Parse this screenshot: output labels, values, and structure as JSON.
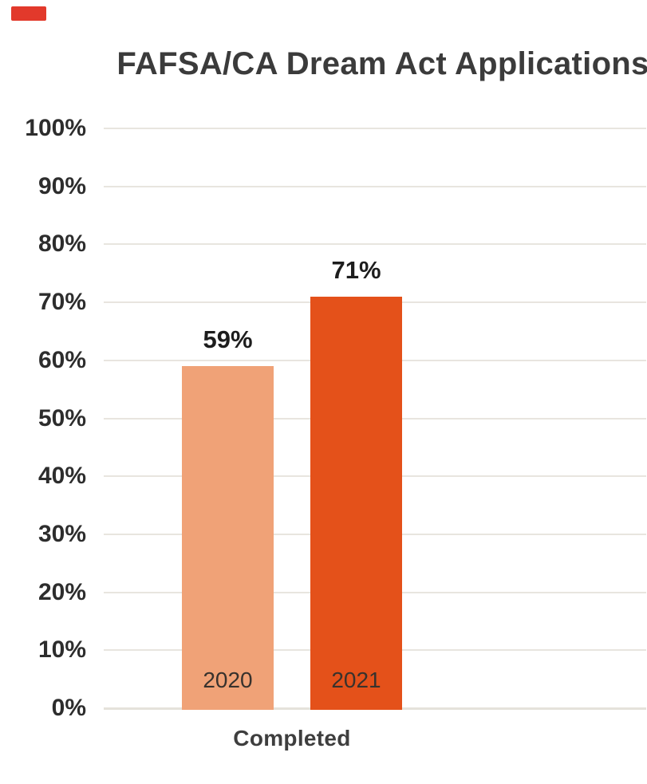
{
  "chart_data": {
    "type": "bar",
    "title": "FAFSA/CA Dream Act Applications",
    "categories": [
      "Completed"
    ],
    "series": [
      {
        "name": "2020",
        "values": [
          59
        ],
        "color": "#F0A277"
      },
      {
        "name": "2021",
        "values": [
          71
        ],
        "color": "#E4511A"
      }
    ],
    "value_labels": [
      "59%",
      "71%"
    ],
    "xlabel": "",
    "ylabel": "",
    "ylim": [
      0,
      100
    ],
    "ytick_step": 10,
    "ytick_labels": [
      "0%",
      "10%",
      "20%",
      "30%",
      "40%",
      "50%",
      "60%",
      "70%",
      "80%",
      "90%",
      "100%"
    ],
    "grid": "horizontal-lines",
    "legend": "none",
    "value_label_position": "above-bar",
    "series_name_label_position": "inside-bar-bottom"
  },
  "colors": {
    "bar_2020": "#F0A277",
    "bar_2021": "#E4511A",
    "gridline": "#E8E5DF",
    "baseline": "#E5E2DB",
    "title_text": "#3B3B3B",
    "tick_text": "#2D2D2D",
    "value_text": "#1D1D1D",
    "corner_mark": "#E2392B",
    "background": "#FFFFFF"
  }
}
